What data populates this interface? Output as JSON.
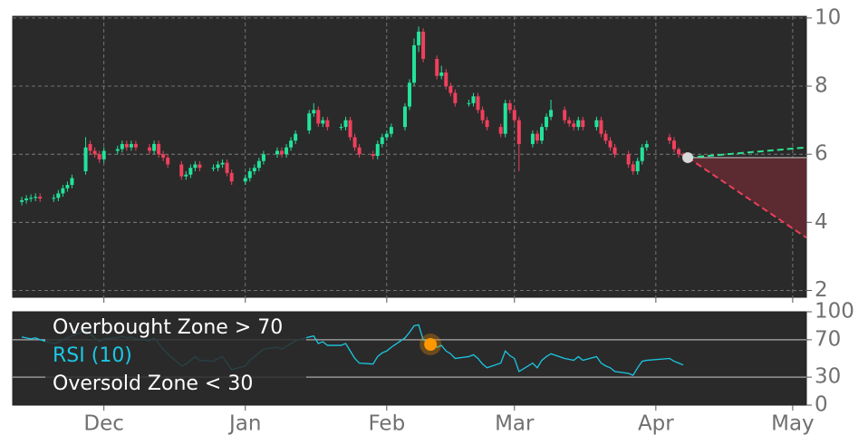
{
  "chart_data": [
    {
      "type": "candlestick",
      "x": [
        2,
        3,
        4,
        5,
        6,
        9,
        10,
        11,
        12,
        13,
        16,
        17,
        18,
        19,
        20,
        23,
        24,
        25,
        26,
        27,
        30,
        31,
        32,
        33,
        34,
        37,
        38,
        39,
        40,
        41,
        44,
        45,
        46,
        47,
        48,
        51,
        52,
        53,
        54,
        55,
        58,
        59,
        60,
        61,
        62,
        65,
        66,
        67,
        68,
        69,
        72,
        73,
        74,
        75,
        76,
        79,
        80,
        81,
        82,
        83,
        86,
        87,
        88,
        89,
        90,
        93,
        94,
        95,
        96,
        97,
        100,
        101,
        102,
        103,
        104,
        107,
        108,
        109,
        110,
        111,
        114,
        115,
        116,
        117,
        118,
        121,
        122,
        123,
        124,
        125,
        128,
        129,
        130,
        131,
        132,
        135,
        136,
        137,
        138,
        139,
        144,
        145,
        146,
        147
      ],
      "open": [
        4.6,
        4.65,
        4.7,
        4.72,
        4.75,
        4.7,
        4.72,
        4.85,
        5.0,
        5.1,
        5.5,
        6.3,
        6.1,
        6.0,
        5.85,
        6.1,
        6.15,
        6.3,
        6.2,
        6.3,
        6.2,
        6.1,
        6.3,
        6.0,
        5.9,
        5.7,
        5.35,
        5.4,
        5.6,
        5.7,
        5.6,
        5.6,
        5.7,
        5.75,
        5.45,
        5.2,
        5.3,
        5.5,
        5.6,
        5.8,
        6.0,
        6.1,
        6.0,
        6.2,
        6.4,
        6.7,
        7.2,
        7.3,
        6.9,
        7.0,
        6.8,
        6.8,
        7.0,
        6.5,
        6.2,
        6.0,
        5.95,
        6.3,
        6.5,
        6.6,
        6.8,
        7.4,
        8.1,
        9.2,
        9.6,
        8.8,
        8.3,
        8.4,
        8.0,
        7.8,
        7.5,
        7.5,
        7.7,
        7.3,
        7.0,
        6.8,
        6.6,
        7.5,
        7.3,
        7.0,
        6.3,
        6.6,
        6.4,
        6.8,
        7.1,
        7.3,
        7.0,
        6.9,
        6.8,
        7.0,
        6.8,
        7.0,
        6.6,
        6.4,
        6.2,
        6.0,
        5.7,
        5.5,
        5.8,
        6.2,
        6.5,
        6.4,
        6.15,
        6.0
      ],
      "high": [
        4.75,
        4.8,
        4.82,
        4.85,
        4.85,
        4.82,
        4.95,
        5.1,
        5.2,
        5.4,
        6.5,
        6.4,
        6.2,
        6.1,
        6.2,
        6.25,
        6.4,
        6.4,
        6.4,
        6.4,
        6.3,
        6.4,
        6.4,
        6.1,
        6.0,
        5.8,
        5.5,
        5.7,
        5.8,
        5.8,
        5.7,
        5.8,
        5.85,
        5.85,
        5.55,
        5.4,
        5.6,
        5.7,
        5.9,
        6.1,
        6.2,
        6.2,
        6.3,
        6.5,
        6.7,
        7.3,
        7.5,
        7.4,
        7.1,
        7.1,
        6.9,
        7.1,
        7.1,
        6.6,
        6.3,
        6.1,
        6.4,
        6.6,
        6.7,
        6.9,
        7.5,
        8.2,
        9.4,
        9.75,
        9.7,
        8.9,
        8.6,
        8.5,
        8.1,
        7.9,
        7.6,
        7.8,
        7.8,
        7.4,
        7.1,
        6.9,
        7.6,
        7.6,
        7.4,
        7.1,
        6.7,
        6.7,
        6.9,
        7.2,
        7.6,
        7.4,
        7.1,
        7.0,
        7.1,
        7.1,
        7.1,
        7.1,
        6.7,
        6.5,
        6.3,
        6.1,
        5.8,
        5.9,
        6.3,
        6.4,
        6.6,
        6.5,
        6.2,
        6.05
      ],
      "low": [
        4.5,
        4.55,
        4.6,
        4.62,
        4.6,
        4.6,
        4.62,
        4.75,
        4.9,
        5.0,
        5.4,
        6.0,
        5.9,
        5.75,
        5.75,
        6.0,
        6.05,
        6.1,
        6.1,
        6.1,
        6.0,
        6.0,
        5.9,
        5.8,
        5.6,
        5.25,
        5.25,
        5.3,
        5.5,
        5.5,
        5.5,
        5.5,
        5.6,
        5.35,
        5.1,
        5.1,
        5.2,
        5.4,
        5.5,
        5.7,
        5.9,
        5.9,
        5.9,
        6.1,
        6.3,
        6.6,
        7.1,
        6.8,
        6.8,
        6.7,
        6.7,
        6.7,
        6.4,
        6.1,
        5.9,
        5.85,
        5.85,
        6.2,
        6.4,
        6.5,
        6.7,
        7.3,
        8.0,
        9.0,
        8.7,
        8.2,
        8.2,
        7.9,
        7.7,
        7.4,
        7.4,
        7.4,
        7.2,
        6.9,
        6.7,
        6.5,
        6.5,
        7.2,
        6.9,
        5.5,
        6.2,
        6.3,
        6.3,
        6.7,
        7.0,
        6.9,
        6.8,
        6.7,
        6.7,
        6.7,
        6.7,
        6.5,
        6.3,
        6.1,
        5.9,
        5.6,
        5.4,
        5.4,
        5.7,
        6.1,
        6.3,
        6.05,
        5.9,
        5.85
      ],
      "close": [
        4.65,
        4.7,
        4.72,
        4.75,
        4.7,
        4.72,
        4.85,
        5.0,
        5.1,
        5.3,
        6.2,
        6.1,
        6.0,
        5.85,
        6.1,
        6.15,
        6.3,
        6.2,
        6.3,
        6.2,
        6.1,
        6.3,
        6.0,
        5.9,
        5.7,
        5.35,
        5.4,
        5.6,
        5.7,
        5.6,
        5.6,
        5.7,
        5.75,
        5.45,
        5.2,
        5.3,
        5.5,
        5.6,
        5.8,
        6.0,
        6.1,
        6.0,
        6.2,
        6.4,
        6.6,
        7.2,
        7.3,
        6.9,
        7.0,
        6.8,
        6.8,
        7.0,
        6.5,
        6.2,
        6.0,
        5.95,
        6.3,
        6.5,
        6.6,
        6.8,
        7.4,
        8.1,
        9.2,
        9.6,
        8.8,
        8.3,
        8.4,
        8.0,
        7.8,
        7.5,
        7.5,
        7.7,
        7.3,
        7.0,
        6.8,
        6.6,
        7.5,
        7.3,
        7.0,
        6.3,
        6.6,
        6.4,
        6.8,
        7.1,
        7.3,
        7.0,
        6.9,
        6.8,
        7.0,
        6.8,
        7.0,
        6.6,
        6.4,
        6.2,
        6.0,
        5.7,
        5.5,
        5.8,
        6.2,
        6.3,
        6.4,
        6.15,
        6.0,
        5.95
      ],
      "up_color": "#22e39b",
      "down_color": "#f0405c",
      "xlim": [
        0,
        174
      ],
      "xticks": [
        20,
        51,
        82,
        110,
        141,
        171
      ],
      "ylim": [
        1.8,
        10.05
      ],
      "yticks": [
        2,
        4,
        6,
        8,
        10
      ],
      "grid": true,
      "forecast": {
        "x": [
          148,
          174
        ],
        "upper": [
          5.9,
          6.2
        ],
        "lower": [
          5.9,
          3.55
        ],
        "upper_color": "#2fe38f",
        "lower_color": "#e8405a",
        "fill": "#5c2a31"
      },
      "last_point": {
        "x": 148,
        "value": 5.9,
        "color": "#d8d8d8"
      }
    },
    {
      "type": "line",
      "series": [
        {
          "name": "RSI (10)",
          "color": "#1cc6e3",
          "x": [
            2,
            3,
            4,
            5,
            6,
            9,
            10,
            11,
            12,
            13,
            16,
            17,
            18,
            19,
            20,
            23,
            24,
            25,
            26,
            27,
            30,
            31,
            32,
            33,
            34,
            37,
            38,
            39,
            40,
            41,
            44,
            45,
            46,
            47,
            48,
            51,
            52,
            53,
            54,
            55,
            58,
            59,
            60,
            61,
            62,
            65,
            66,
            67,
            68,
            69,
            72,
            73,
            74,
            75,
            76,
            79,
            80,
            81,
            82,
            83,
            86,
            87,
            88,
            89,
            90,
            93,
            94,
            95,
            96,
            97,
            100,
            101,
            102,
            103,
            104,
            107,
            108,
            109,
            110,
            111,
            114,
            115,
            116,
            117,
            118,
            121,
            122,
            123,
            124,
            125,
            128,
            129,
            130,
            131,
            132,
            135,
            136,
            137,
            138,
            139,
            144,
            145,
            146,
            147
          ],
          "values": [
            73,
            72,
            71,
            72,
            70,
            66,
            67,
            70,
            72,
            74,
            80,
            76,
            72,
            68,
            71,
            72,
            74,
            72,
            73,
            71,
            69,
            72,
            66,
            60,
            55,
            42,
            44,
            48,
            52,
            48,
            47,
            50,
            52,
            45,
            38,
            42,
            48,
            52,
            56,
            60,
            62,
            60,
            63,
            66,
            69,
            73,
            74,
            66,
            68,
            64,
            64,
            66,
            58,
            50,
            45,
            44,
            52,
            56,
            58,
            62,
            72,
            78,
            85,
            86,
            70,
            62,
            64,
            58,
            55,
            50,
            52,
            54,
            50,
            44,
            40,
            45,
            58,
            53,
            50,
            36,
            45,
            40,
            48,
            52,
            55,
            50,
            49,
            48,
            52,
            48,
            52,
            45,
            42,
            40,
            36,
            34,
            32,
            40,
            47,
            48,
            50,
            47,
            45,
            43
          ]
        }
      ],
      "zones": [
        {
          "label": "Overbought Zone > 70",
          "value": 70
        },
        {
          "label": "Oversold Zone < 30",
          "value": 30
        }
      ],
      "marker": {
        "x": 91.6,
        "value": 65,
        "color": "#ff9800"
      },
      "xlim": [
        0,
        174
      ],
      "xticks": [
        {
          "value": 20,
          "label": "Dec"
        },
        {
          "value": 51,
          "label": "Jan"
        },
        {
          "value": 82,
          "label": "Feb"
        },
        {
          "value": 110,
          "label": "Mar"
        },
        {
          "value": 141,
          "label": "Apr"
        },
        {
          "value": 171,
          "label": "May"
        }
      ],
      "ylim": [
        0,
        100
      ],
      "yticks": [
        0,
        30,
        70,
        100
      ]
    }
  ]
}
